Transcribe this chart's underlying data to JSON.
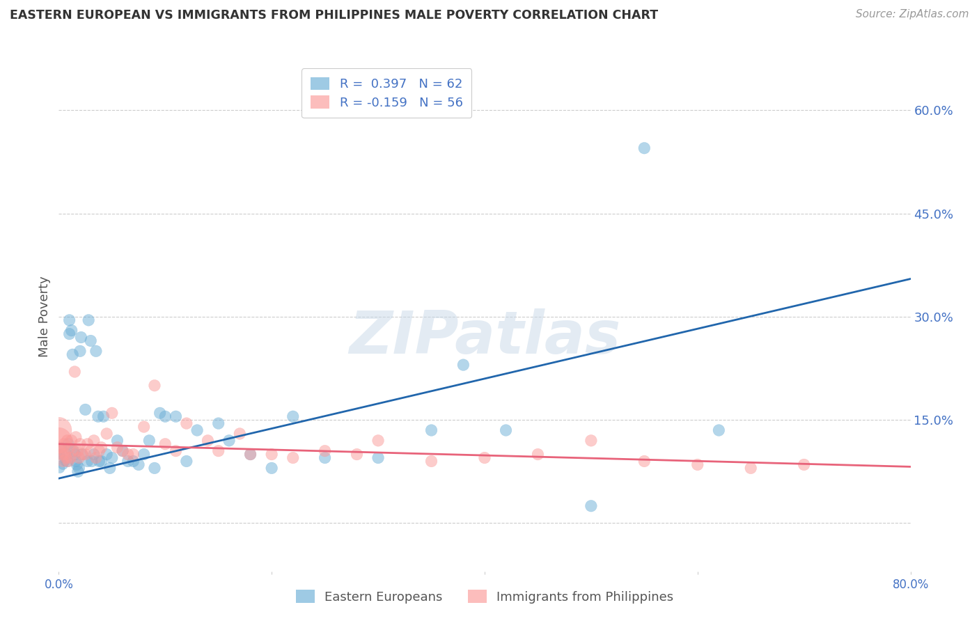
{
  "title": "EASTERN EUROPEAN VS IMMIGRANTS FROM PHILIPPINES MALE POVERTY CORRELATION CHART",
  "source": "Source: ZipAtlas.com",
  "ylabel": "Male Poverty",
  "yticks": [
    0.0,
    0.15,
    0.3,
    0.45,
    0.6
  ],
  "ytick_labels": [
    "",
    "15.0%",
    "30.0%",
    "45.0%",
    "60.0%"
  ],
  "xlim": [
    0.0,
    0.8
  ],
  "ylim": [
    -0.07,
    0.67
  ],
  "ee_color": "#6baed6",
  "ph_color": "#fb9a99",
  "ee_trend_color": "#2166ac",
  "ph_trend_color": "#e8637a",
  "ee_trend_x": [
    0.0,
    0.8
  ],
  "ee_trend_y": [
    0.065,
    0.355
  ],
  "ph_trend_x": [
    0.0,
    0.8
  ],
  "ph_trend_y": [
    0.115,
    0.082
  ],
  "ee_points_x": [
    0.001,
    0.001,
    0.002,
    0.003,
    0.004,
    0.006,
    0.007,
    0.008,
    0.009,
    0.01,
    0.01,
    0.012,
    0.013,
    0.014,
    0.015,
    0.016,
    0.017,
    0.018,
    0.019,
    0.02,
    0.021,
    0.022,
    0.025,
    0.027,
    0.028,
    0.03,
    0.031,
    0.033,
    0.035,
    0.037,
    0.038,
    0.04,
    0.042,
    0.045,
    0.048,
    0.05,
    0.055,
    0.06,
    0.065,
    0.07,
    0.075,
    0.08,
    0.085,
    0.09,
    0.095,
    0.1,
    0.11,
    0.12,
    0.13,
    0.15,
    0.16,
    0.18,
    0.2,
    0.22,
    0.25,
    0.3,
    0.35,
    0.38,
    0.42,
    0.5,
    0.55,
    0.62
  ],
  "ee_points_y": [
    0.1,
    0.08,
    0.095,
    0.11,
    0.085,
    0.09,
    0.1,
    0.09,
    0.115,
    0.295,
    0.275,
    0.28,
    0.245,
    0.105,
    0.1,
    0.09,
    0.085,
    0.075,
    0.08,
    0.25,
    0.27,
    0.1,
    0.165,
    0.09,
    0.295,
    0.265,
    0.09,
    0.1,
    0.25,
    0.155,
    0.09,
    0.09,
    0.155,
    0.1,
    0.08,
    0.095,
    0.12,
    0.105,
    0.09,
    0.09,
    0.085,
    0.1,
    0.12,
    0.08,
    0.16,
    0.155,
    0.155,
    0.09,
    0.135,
    0.145,
    0.12,
    0.1,
    0.08,
    0.155,
    0.095,
    0.095,
    0.135,
    0.23,
    0.135,
    0.025,
    0.545,
    0.135
  ],
  "ee_sizes": [
    60,
    60,
    60,
    60,
    60,
    60,
    80,
    80,
    80,
    80,
    80,
    80,
    80,
    80,
    80,
    80,
    80,
    80,
    80,
    80,
    80,
    80,
    80,
    80,
    80,
    80,
    80,
    80,
    80,
    80,
    80,
    80,
    80,
    80,
    80,
    80,
    80,
    80,
    80,
    80,
    80,
    80,
    80,
    80,
    80,
    80,
    80,
    80,
    80,
    80,
    80,
    80,
    80,
    80,
    80,
    80,
    80,
    80,
    80,
    80,
    80,
    80
  ],
  "ph_points_x": [
    0.0,
    0.0,
    0.001,
    0.002,
    0.003,
    0.004,
    0.005,
    0.006,
    0.007,
    0.008,
    0.009,
    0.01,
    0.011,
    0.012,
    0.013,
    0.015,
    0.016,
    0.018,
    0.019,
    0.02,
    0.022,
    0.025,
    0.027,
    0.03,
    0.033,
    0.035,
    0.038,
    0.04,
    0.045,
    0.05,
    0.055,
    0.06,
    0.065,
    0.07,
    0.08,
    0.09,
    0.1,
    0.11,
    0.12,
    0.14,
    0.15,
    0.17,
    0.18,
    0.2,
    0.22,
    0.25,
    0.28,
    0.3,
    0.35,
    0.4,
    0.45,
    0.5,
    0.55,
    0.6,
    0.65,
    0.7
  ],
  "ph_points_y": [
    0.12,
    0.135,
    0.11,
    0.105,
    0.1,
    0.09,
    0.115,
    0.1,
    0.095,
    0.12,
    0.09,
    0.11,
    0.095,
    0.12,
    0.105,
    0.22,
    0.125,
    0.105,
    0.095,
    0.115,
    0.1,
    0.1,
    0.115,
    0.105,
    0.12,
    0.095,
    0.105,
    0.11,
    0.13,
    0.16,
    0.11,
    0.105,
    0.1,
    0.1,
    0.14,
    0.2,
    0.115,
    0.105,
    0.145,
    0.12,
    0.105,
    0.13,
    0.1,
    0.1,
    0.095,
    0.105,
    0.1,
    0.12,
    0.09,
    0.095,
    0.1,
    0.12,
    0.09,
    0.085,
    0.08,
    0.085
  ],
  "ph_sizes": [
    400,
    400,
    80,
    80,
    80,
    80,
    80,
    80,
    80,
    80,
    80,
    80,
    80,
    80,
    80,
    80,
    80,
    80,
    80,
    80,
    80,
    80,
    80,
    80,
    80,
    80,
    80,
    80,
    80,
    80,
    80,
    80,
    80,
    80,
    80,
    80,
    80,
    80,
    80,
    80,
    80,
    80,
    80,
    80,
    80,
    80,
    80,
    80,
    80,
    80,
    80,
    80,
    80,
    80,
    80,
    80
  ],
  "watermark_text": "ZIPatlas",
  "background_color": "#ffffff",
  "grid_color": "#cccccc",
  "title_color": "#333333",
  "tick_label_color": "#4472c4"
}
